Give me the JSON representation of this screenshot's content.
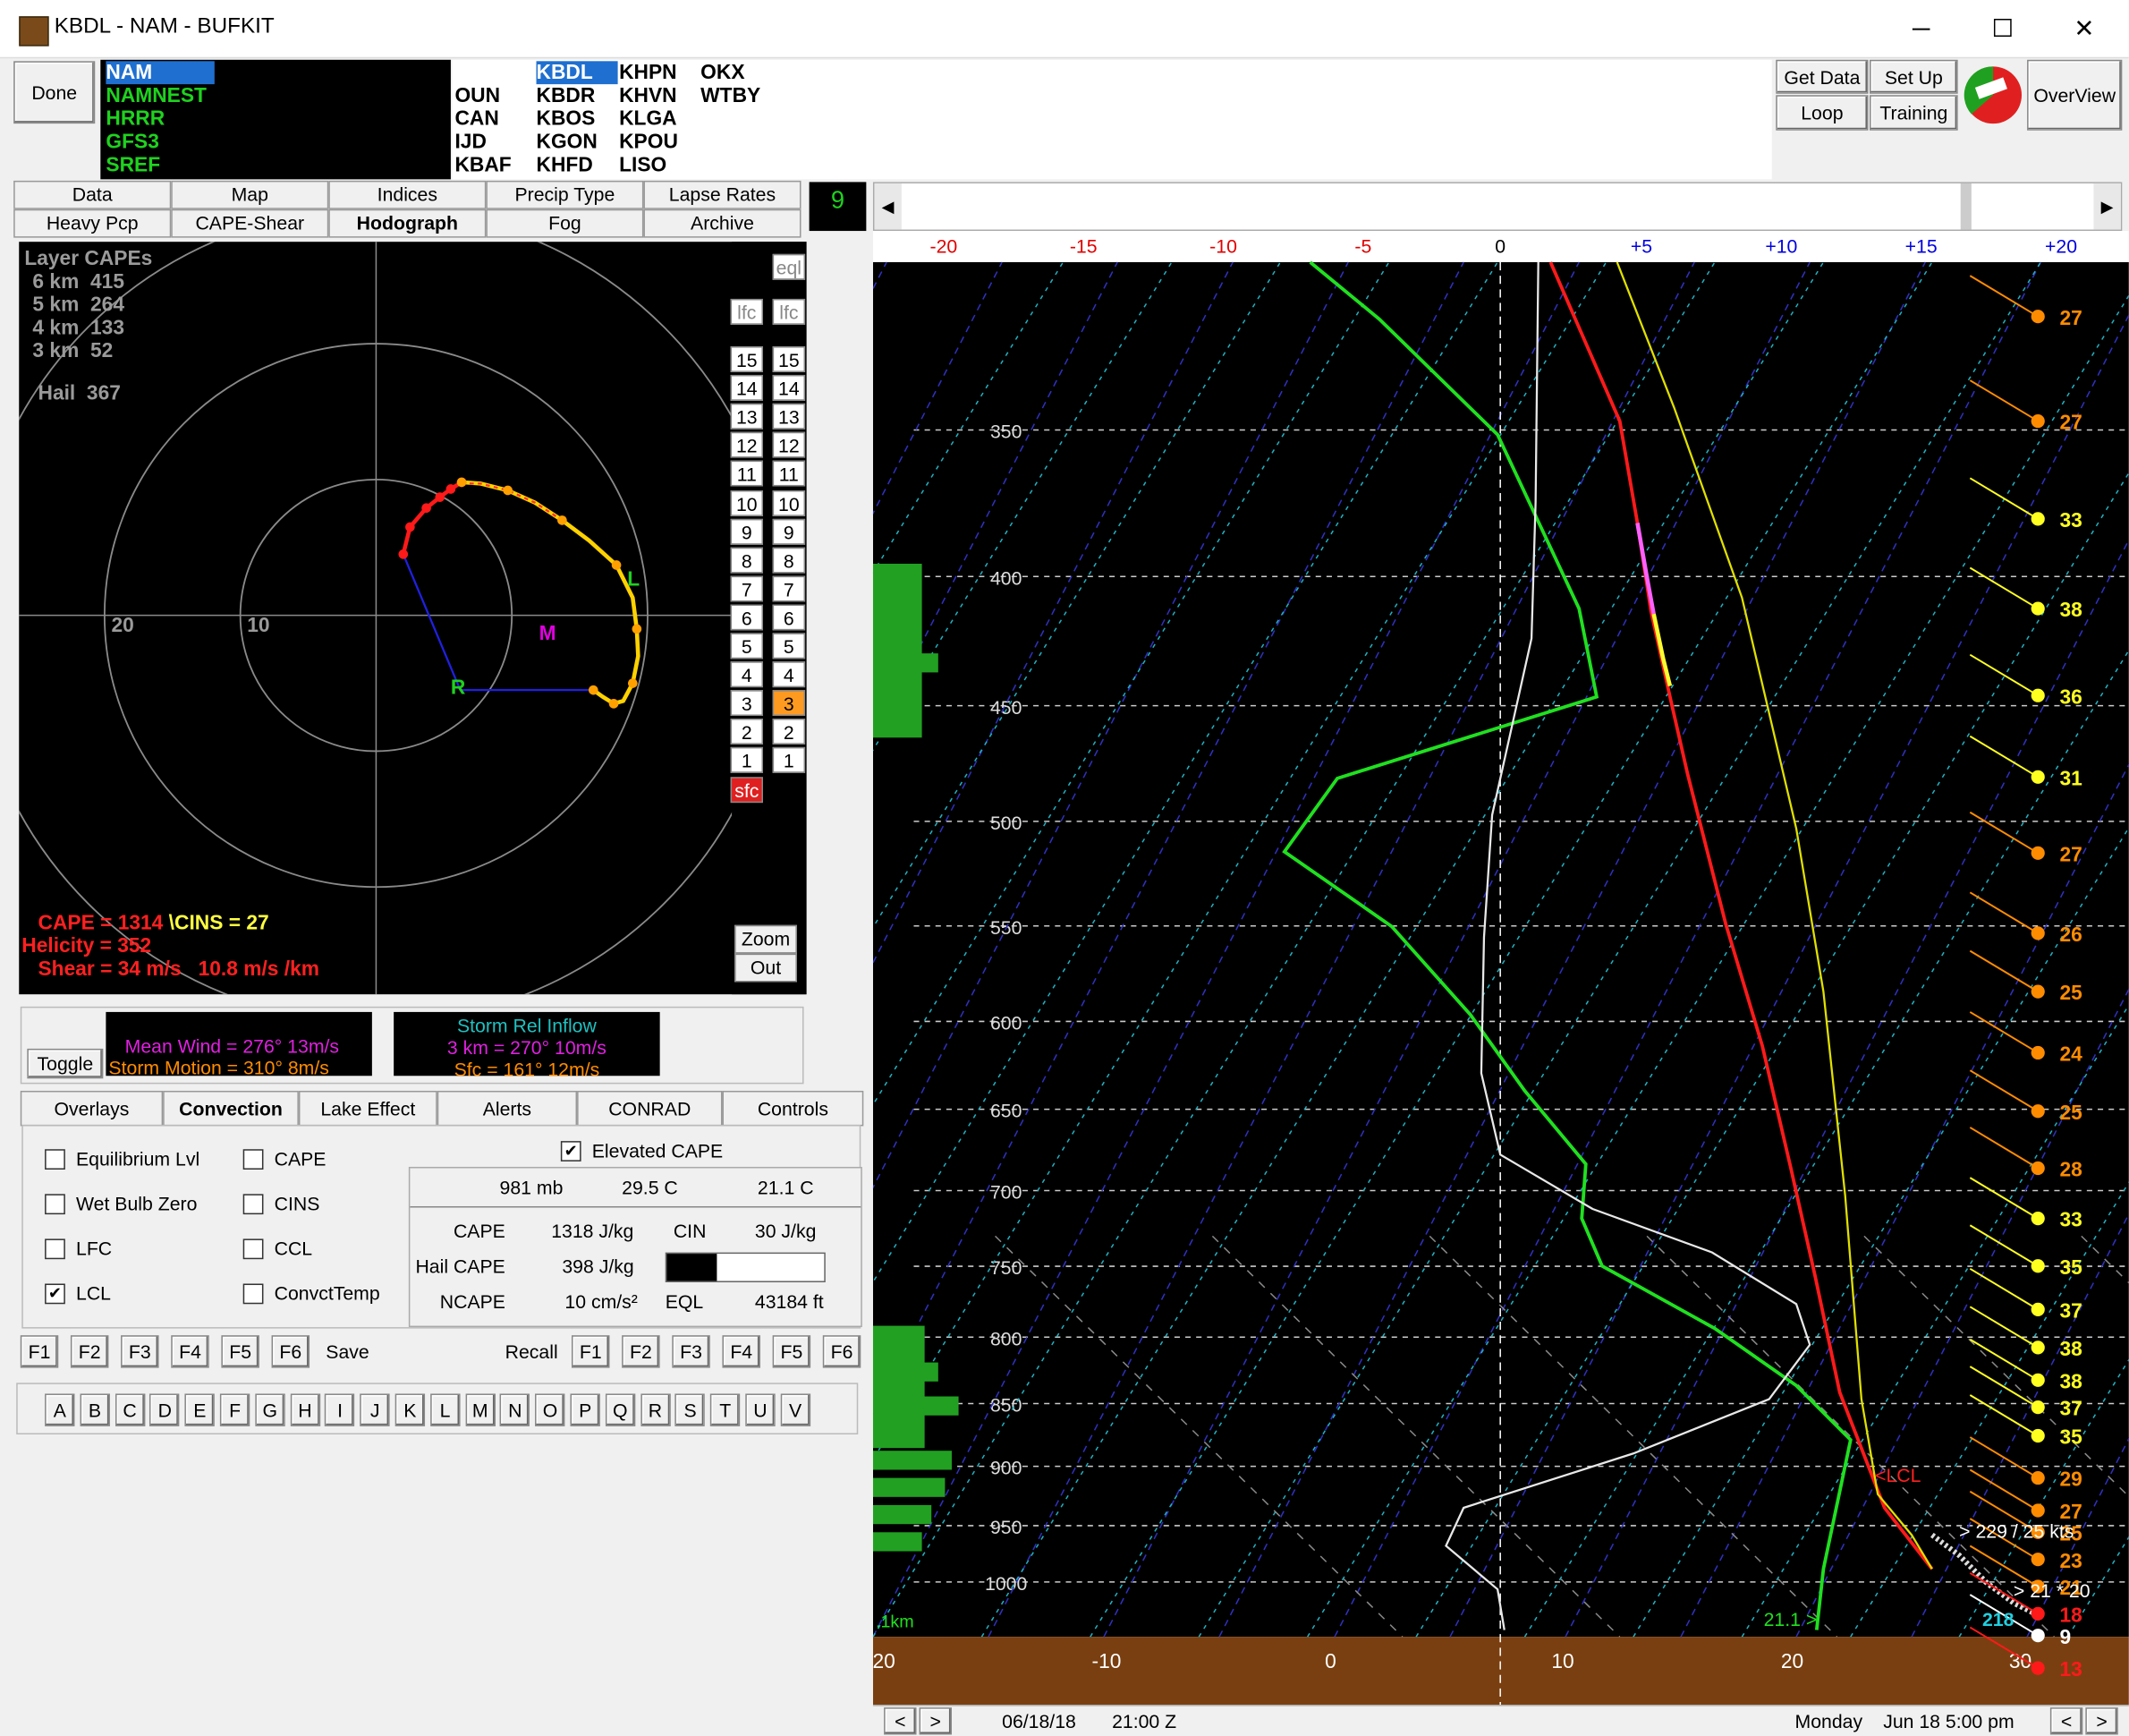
{
  "window": {
    "title": "KBDL - NAM - BUFKIT",
    "minimize": "─",
    "maximize": "☐",
    "close": "✕"
  },
  "toolbar": {
    "done": "Done",
    "models": [
      "NAM",
      "NAMNEST",
      "HRRR",
      "GFS3",
      "SREF"
    ],
    "stations": {
      "col1": [
        "",
        "OUN",
        "CAN",
        "IJD",
        "KBAF"
      ],
      "col2": [
        "KBDL",
        "KBDR",
        "KBOS",
        "KGON",
        "KHFD"
      ],
      "col3": [
        "KHPN",
        "KHVN",
        "KLGA",
        "KPOU",
        "LISO"
      ],
      "col4": [
        "OKX",
        "WTBY",
        "",
        "",
        ""
      ]
    },
    "get_data": "Get Data",
    "set_up": "Set Up",
    "loop": "Loop",
    "training": "Training",
    "overview": "OverView"
  },
  "tabs": {
    "row1": [
      "Data",
      "Map",
      "Indices",
      "Precip Type",
      "Lapse Rates"
    ],
    "row2": [
      "Heavy Pcp",
      "CAPE-Shear",
      "Hodograph",
      "Fog",
      "Archive"
    ],
    "active": "Hodograph"
  },
  "frame_counter": "9",
  "hodograph": {
    "layer_capes_title": "Layer CAPEs",
    "layers": [
      {
        "label": "6 km",
        "value": "415"
      },
      {
        "label": "5 km",
        "value": "264"
      },
      {
        "label": "4 km",
        "value": "133"
      },
      {
        "label": "3 km",
        "value": "52"
      }
    ],
    "hail_label": "Hail",
    "hail_value": "367",
    "ring_labels": [
      "20",
      "10"
    ],
    "marker_L": "L",
    "marker_M": "M",
    "marker_R": "R",
    "eql": "eql",
    "lfc1": "lfc",
    "lfc2": "lfc",
    "levels": [
      "15",
      "14",
      "13",
      "12",
      "11",
      "10",
      "9",
      "8",
      "7",
      "6",
      "5",
      "4",
      "3",
      "2",
      "1"
    ],
    "sfc": "sfc",
    "zoom": "Zoom",
    "out": "Out",
    "cape_line": "CAPE = 1314",
    "cins_line": "\\CINS = 27",
    "helicity_line": "Helicity = 352",
    "shear_line": "Shear = 34 m/s",
    "shear_rate": "10.8 m/s /km",
    "colors": {
      "low": "#ff1a1a",
      "mid": "#ffd200",
      "high": "#ffa000",
      "mean_wind": "#c000c0",
      "storm": "#ff8c00"
    }
  },
  "wind_info": {
    "toggle": "Toggle",
    "mean_wind": "Mean Wind = 276°  13m/s",
    "storm_motion": "Storm Motion = 310°  8m/s",
    "inflow_title": "Storm Rel Inflow",
    "inflow_3km": "3 km = 270°  10m/s",
    "inflow_sfc": "Sfc = 161°  12m/s"
  },
  "tabs2": {
    "items": [
      "Overlays",
      "Convection",
      "Lake Effect",
      "Alerts",
      "CONRAD",
      "Controls"
    ],
    "active": "Convection"
  },
  "convection": {
    "checks_left": [
      {
        "label": "Equilibrium Lvl",
        "checked": false
      },
      {
        "label": "Wet Bulb Zero",
        "checked": false
      },
      {
        "label": "LFC",
        "checked": false
      },
      {
        "label": "LCL",
        "checked": true
      }
    ],
    "checks_mid": [
      {
        "label": "CAPE",
        "checked": false
      },
      {
        "label": "CINS",
        "checked": false
      },
      {
        "label": "CCL",
        "checked": false
      },
      {
        "label": "ConvctTemp",
        "checked": false
      }
    ],
    "elevated_cape": "Elevated CAPE",
    "elevated_checked": true,
    "parcel": {
      "pressure": "981 mb",
      "temp": "29.5 C",
      "dewpoint": "21.1 C"
    },
    "rows": [
      {
        "l1": "CAPE",
        "v1": "1318 J/kg",
        "l2": "CIN",
        "v2": "30 J/kg"
      },
      {
        "l1": "Hail CAPE",
        "v1": "398 J/kg",
        "l2": "",
        "v2": ""
      },
      {
        "l1": "NCAPE",
        "v1": "10 cm/s²",
        "l2": "EQL",
        "v2": "43184 ft"
      }
    ],
    "fkeys": [
      "F1",
      "F2",
      "F3",
      "F4",
      "F5",
      "F6"
    ],
    "save": "Save",
    "recall": "Recall",
    "letters": [
      "A",
      "B",
      "C",
      "D",
      "E",
      "F",
      "G",
      "H",
      "I",
      "J",
      "K",
      "L",
      "M",
      "N",
      "O",
      "P",
      "Q",
      "R",
      "S",
      "T",
      "U",
      "V"
    ]
  },
  "skewt": {
    "top_axis": [
      "-20",
      "-15",
      "-10",
      "-5",
      "0",
      "+5",
      "+10",
      "+15",
      "+20"
    ],
    "top_axis_colors": [
      "#e00000",
      "#e00000",
      "#e00000",
      "#e00000",
      "#000000",
      "#0000e0",
      "#0000e0",
      "#0000e0",
      "#0000e0"
    ],
    "pressure_labels": [
      "350",
      "400",
      "450",
      "500",
      "550",
      "600",
      "650",
      "700",
      "750",
      "800",
      "850",
      "900",
      "950",
      "1000"
    ],
    "temp_labels": [
      "20",
      "-10",
      "0",
      "10",
      "20",
      "30"
    ],
    "wind_speeds": [
      "27",
      "27",
      "33",
      "38",
      "36",
      "31",
      "27",
      "26",
      "25",
      "24",
      "25",
      "28",
      "33",
      "35",
      "37",
      "38",
      "38",
      "37",
      "35",
      "29",
      "27",
      "25",
      "23",
      "21",
      "18",
      "9",
      "13"
    ],
    "lcl_label": "<LCL",
    "km_label": ".1km",
    "sfc_dew": "21.1 >",
    "sfc_temp": "218",
    "wind_annot1": "> 229 / 25 kts",
    "wind_annot2": "> 21 * 20"
  },
  "status": {
    "date": "06/18/18",
    "time": "21:00 Z",
    "day": "Monday",
    "local": "Jun 18  5:00 pm"
  }
}
